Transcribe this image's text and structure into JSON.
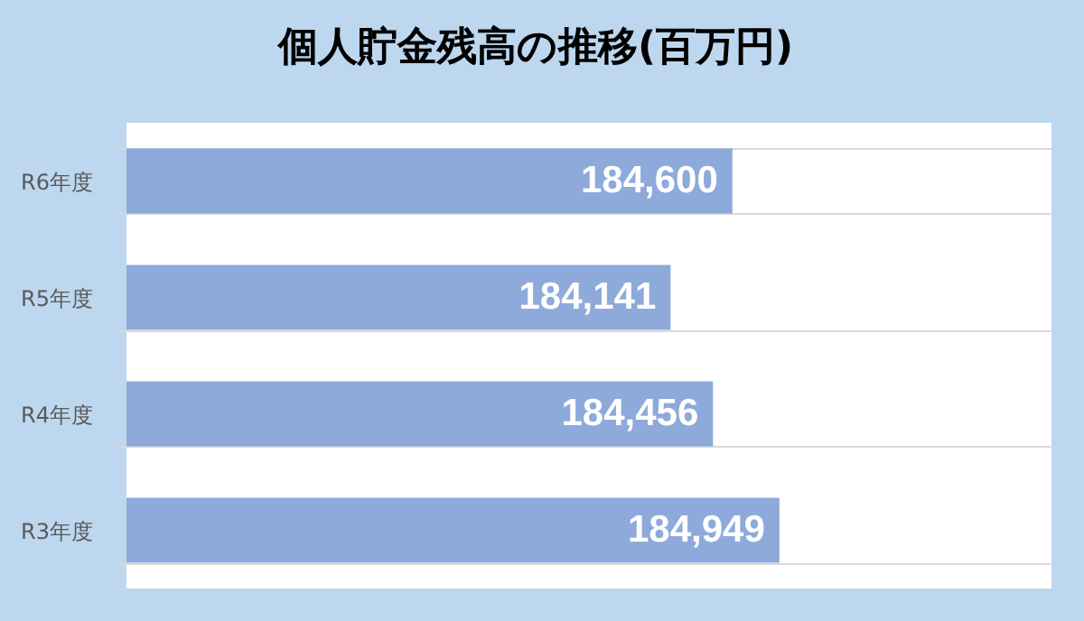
{
  "chart_data": {
    "type": "bar",
    "orientation": "horizontal",
    "title": "個人貯金残高の推移(百万円)",
    "categories": [
      "R6年度",
      "R5年度",
      "R4年度",
      "R3年度"
    ],
    "values": [
      184600,
      184141,
      184456,
      184949
    ],
    "color": "#8eaadb",
    "value_labels": [
      "184,600",
      "184,141",
      "184,456",
      "184,949"
    ],
    "tick_labels": "y"
  }
}
